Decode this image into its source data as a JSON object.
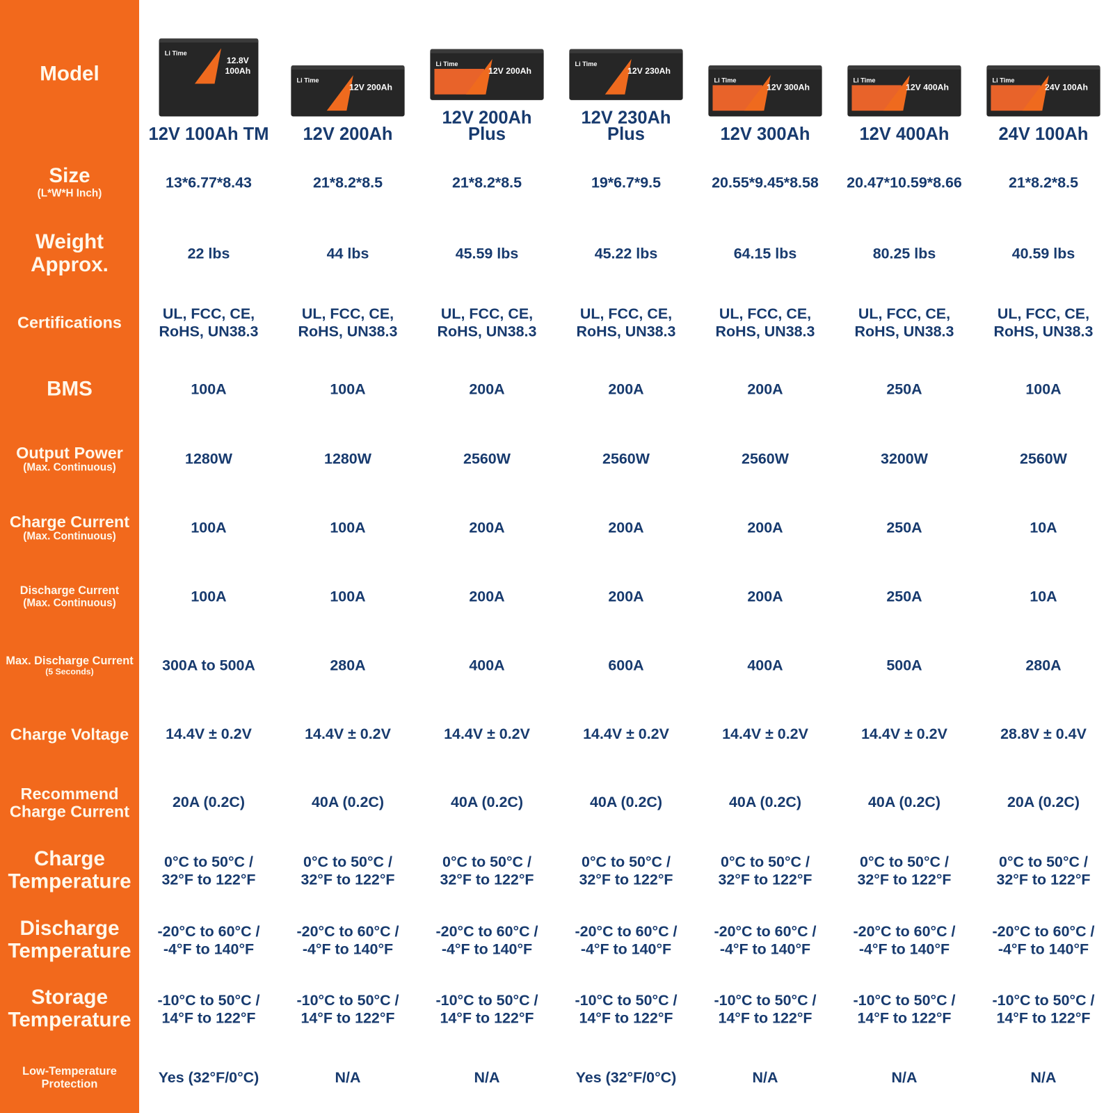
{
  "colors": {
    "sidebar": "#f2691c",
    "text": "#173a6e",
    "label": "#fff7ea"
  },
  "models": [
    {
      "name": "12V 100Ah TM",
      "img": "12.8V 100Ah"
    },
    {
      "name": "12V 200Ah",
      "img": "12V 200Ah"
    },
    {
      "name": "12V 200Ah Plus",
      "img": "12V 200Ah"
    },
    {
      "name": "12V 230Ah Plus",
      "img": "12V 230Ah"
    },
    {
      "name": "12V 300Ah",
      "img": "12V 300Ah"
    },
    {
      "name": "12V 400Ah",
      "img": "12V 400Ah"
    },
    {
      "name": "24V 100Ah",
      "img": "24V 100Ah"
    }
  ],
  "brand": "Li Time",
  "rows": [
    {
      "label": "Model",
      "sub": ""
    },
    {
      "label": "Size",
      "sub": "(L*W*H Inch)",
      "values": [
        "13*6.77*8.43",
        "21*8.2*8.5",
        "21*8.2*8.5",
        "19*6.7*9.5",
        "20.55*9.45*8.58",
        "20.47*10.59*8.66",
        "21*8.2*8.5"
      ]
    },
    {
      "label": "Weight Approx.",
      "sub": "",
      "values": [
        "22 lbs",
        "44 lbs",
        "45.59 lbs",
        "45.22 lbs",
        "64.15 lbs",
        "80.25 lbs",
        "40.59 lbs"
      ]
    },
    {
      "label": "Certifications",
      "sub": "",
      "values": [
        "UL, FCC, CE, RoHS, UN38.3",
        "UL, FCC, CE, RoHS, UN38.3",
        "UL, FCC, CE, RoHS, UN38.3",
        "UL, FCC, CE, RoHS, UN38.3",
        "UL, FCC, CE, RoHS, UN38.3",
        "UL, FCC, CE, RoHS, UN38.3",
        "UL, FCC, CE, RoHS, UN38.3"
      ]
    },
    {
      "label": "BMS",
      "sub": "",
      "values": [
        "100A",
        "100A",
        "200A",
        "200A",
        "200A",
        "250A",
        "100A"
      ]
    },
    {
      "label": "Output Power",
      "sub": "(Max. Continuous)",
      "values": [
        "1280W",
        "1280W",
        "2560W",
        "2560W",
        "2560W",
        "3200W",
        "2560W"
      ]
    },
    {
      "label": "Charge Current",
      "sub": "(Max. Continuous)",
      "values": [
        "100A",
        "100A",
        "200A",
        "200A",
        "200A",
        "250A",
        "10A"
      ]
    },
    {
      "label": "Discharge Current",
      "sub": "(Max. Continuous)",
      "values": [
        "100A",
        "100A",
        "200A",
        "200A",
        "200A",
        "250A",
        "10A"
      ]
    },
    {
      "label": "Max. Discharge Current",
      "sub": "(5 Seconds)",
      "values": [
        "300A to 500A",
        "280A",
        "400A",
        "600A",
        "400A",
        "500A",
        "280A"
      ]
    },
    {
      "label": "Charge Voltage",
      "sub": "",
      "values": [
        "14.4V ± 0.2V",
        "14.4V ± 0.2V",
        "14.4V ± 0.2V",
        "14.4V ± 0.2V",
        "14.4V ± 0.2V",
        "14.4V ± 0.2V",
        "28.8V ± 0.4V"
      ]
    },
    {
      "label": "Recommend Charge Current",
      "sub": "",
      "values": [
        "20A (0.2C)",
        "40A (0.2C)",
        "40A (0.2C)",
        "40A (0.2C)",
        "40A (0.2C)",
        "40A (0.2C)",
        "20A (0.2C)"
      ]
    },
    {
      "label": "Charge Temperature",
      "sub": "",
      "values": [
        "0°C to 50°C / 32°F to 122°F",
        "0°C to 50°C / 32°F to 122°F",
        "0°C to 50°C / 32°F to 122°F",
        "0°C to 50°C / 32°F to 122°F",
        "0°C to 50°C / 32°F to 122°F",
        "0°C to 50°C / 32°F to 122°F",
        "0°C to 50°C / 32°F to 122°F"
      ]
    },
    {
      "label": "Discharge Temperature",
      "sub": "",
      "values": [
        "-20°C to 60°C / -4°F to 140°F",
        "-20°C to 60°C / -4°F to 140°F",
        "-20°C to 60°C / -4°F to 140°F",
        "-20°C to 60°C / -4°F to 140°F",
        "-20°C to 60°C / -4°F to 140°F",
        "-20°C to 60°C / -4°F to 140°F",
        "-20°C to 60°C / -4°F to 140°F"
      ]
    },
    {
      "label": "Storage Temperature",
      "sub": "",
      "values": [
        "-10°C to 50°C / 14°F to 122°F",
        "-10°C to 50°C / 14°F to 122°F",
        "-10°C to 50°C / 14°F to 122°F",
        "-10°C to 50°C / 14°F to 122°F",
        "-10°C to 50°C / 14°F to 122°F",
        "-10°C to 50°C / 14°F to 122°F",
        "-10°C to 50°C / 14°F to 122°F"
      ]
    },
    {
      "label": "Low-Temperature Protection",
      "sub": "",
      "values": [
        "Yes (32°F/0°C)",
        "N/A",
        "N/A",
        "Yes (32°F/0°C)",
        "N/A",
        "N/A",
        "N/A"
      ]
    }
  ]
}
